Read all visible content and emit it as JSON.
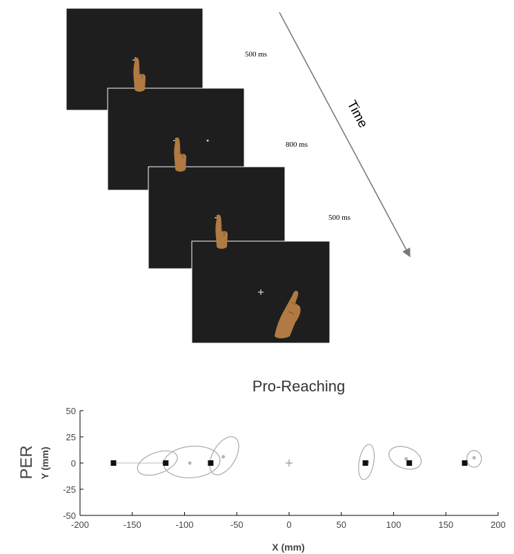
{
  "sequence": {
    "frames": [
      {
        "name": "frame-1",
        "duration": "500 ms",
        "hand": "center",
        "dot": false
      },
      {
        "name": "frame-2",
        "duration": "800 ms",
        "hand": "center",
        "dot": true
      },
      {
        "name": "frame-3",
        "duration": "500 ms",
        "hand": "center",
        "dot": false
      },
      {
        "name": "frame-4",
        "duration": "",
        "hand": "reach",
        "dot": false
      }
    ],
    "time_label": "Time"
  },
  "chart_data": {
    "type": "scatter",
    "title": "Pro-Reaching",
    "row_label": "PER",
    "xlabel": "X (mm)",
    "ylabel": "Y (mm)",
    "xlim": [
      -200,
      200
    ],
    "ylim": [
      -50,
      50
    ],
    "xticks": [
      -200,
      -150,
      -100,
      -50,
      0,
      50,
      100,
      150,
      200
    ],
    "yticks": [
      50,
      25,
      0,
      -25,
      -50
    ],
    "fixation": {
      "x": 0,
      "y": 0
    },
    "targets": [
      {
        "x": -168,
        "y": 0
      },
      {
        "x": -118,
        "y": 0
      },
      {
        "x": -75,
        "y": 0
      },
      {
        "x": 73,
        "y": 0
      },
      {
        "x": 115,
        "y": 0
      },
      {
        "x": 168,
        "y": 0
      }
    ],
    "endpoints": [
      {
        "x": -120,
        "y": 0
      },
      {
        "x": -95,
        "y": 0
      },
      {
        "x": -63,
        "y": 6
      },
      {
        "x": 75,
        "y": 1
      },
      {
        "x": 112,
        "y": 4
      },
      {
        "x": 177,
        "y": 5
      }
    ],
    "ellipses": [
      {
        "cx": -126,
        "cy": 0,
        "rx": 20,
        "ry": 10,
        "angle": -20
      },
      {
        "cx": -93,
        "cy": 1,
        "rx": 27,
        "ry": 15,
        "angle": -5
      },
      {
        "cx": -62,
        "cy": 7,
        "rx": 11,
        "ry": 20,
        "angle": 30
      },
      {
        "cx": 74,
        "cy": 1,
        "rx": 7,
        "ry": 17,
        "angle": 10
      },
      {
        "cx": 111,
        "cy": 5,
        "rx": 16,
        "ry": 10,
        "angle": 20
      },
      {
        "cx": 177,
        "cy": 4,
        "rx": 7,
        "ry": 8,
        "angle": 0
      }
    ],
    "colors": {
      "ellipse": "#a8a8a8",
      "target": "#111111",
      "endpoint": "#b5b5b5"
    }
  }
}
